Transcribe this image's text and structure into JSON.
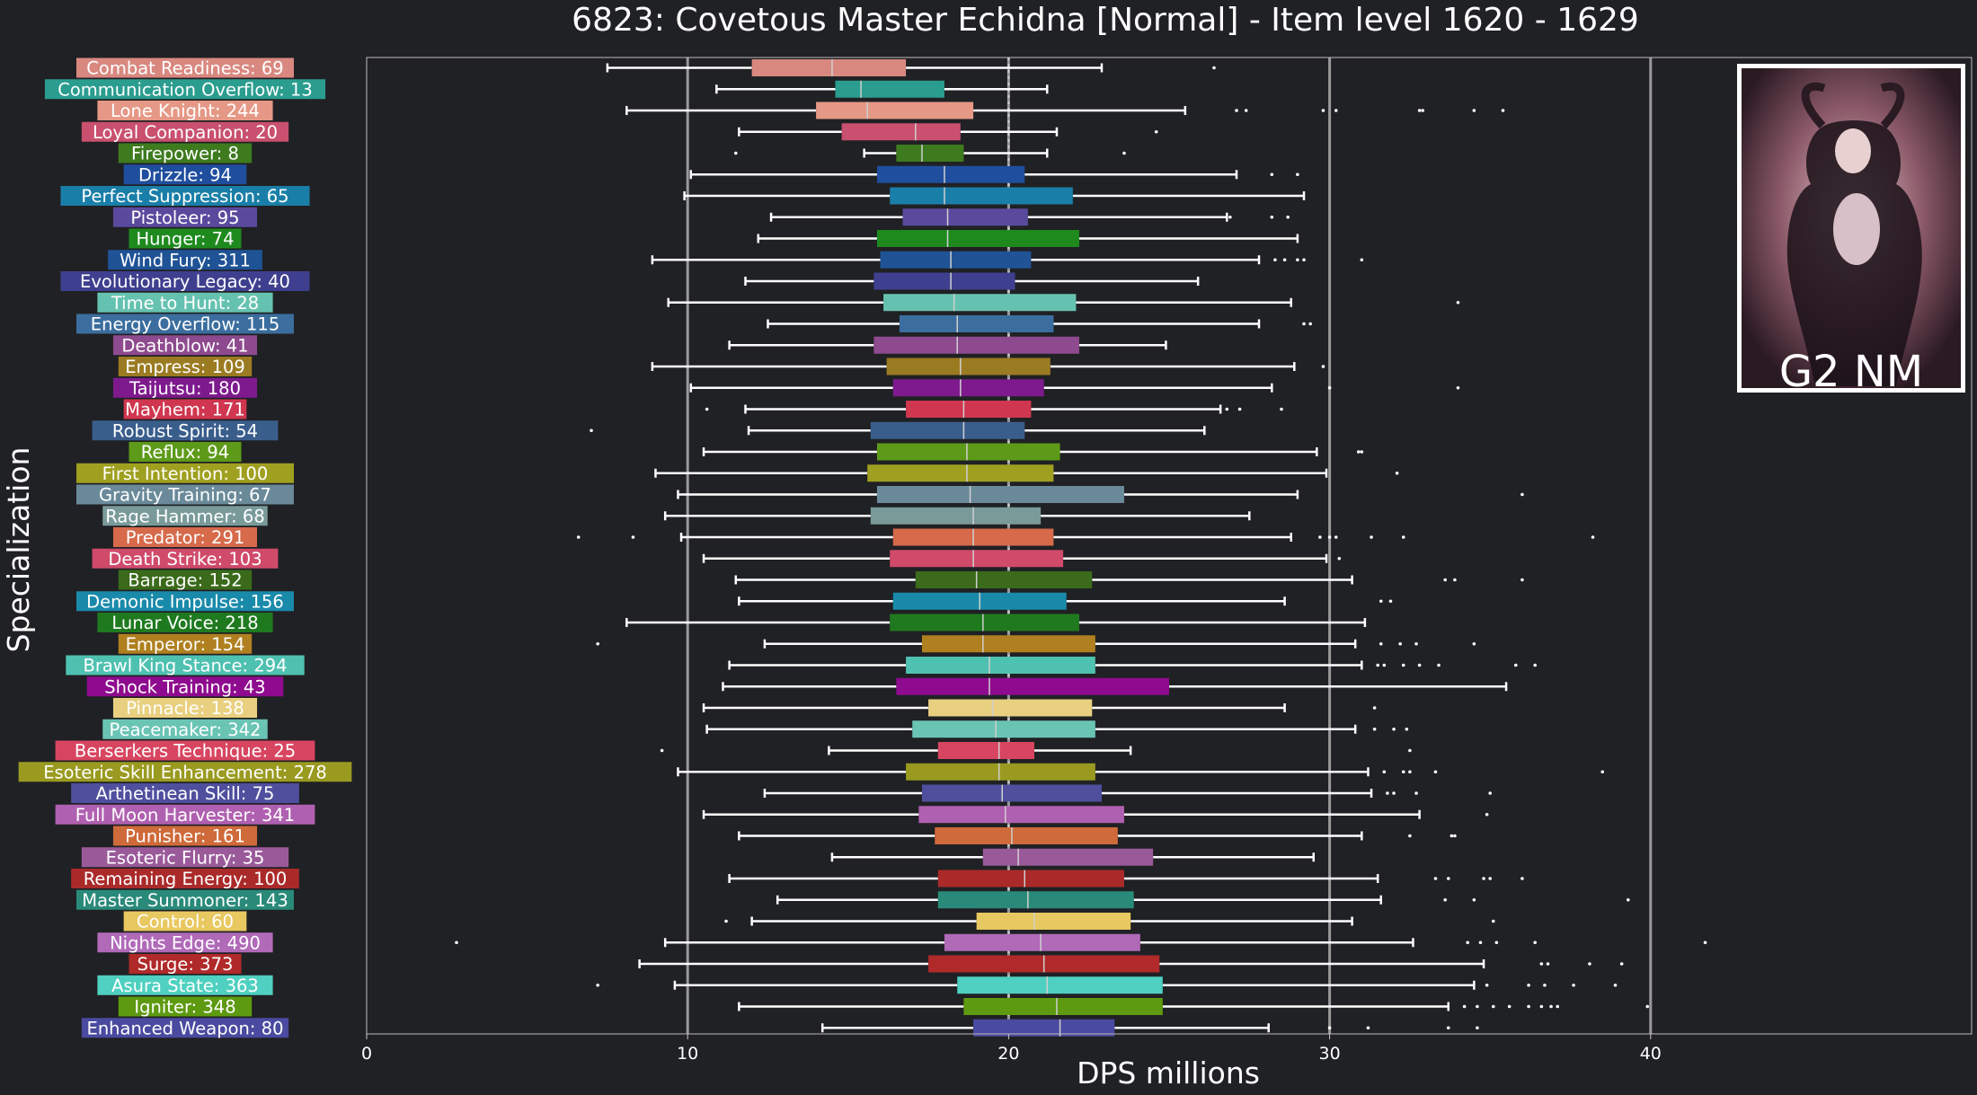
{
  "chart_data": {
    "type": "box",
    "title": "6823: Covetous Master Echidna [Normal] - Item level 1620 - 1629",
    "xlabel": "DPS millions",
    "ylabel": "Specialization",
    "xlim": [
      0,
      50
    ],
    "xticks": [
      0,
      10,
      20,
      30,
      40
    ],
    "grid": "vertical gridlines at major ticks",
    "reference_line": 20,
    "badge": {
      "text": "G2 NM",
      "image": "boss-portrait"
    },
    "series": [
      {
        "label": "Combat Readiness: 69",
        "color": "#d98880",
        "whislo": 7.5,
        "q1": 12.0,
        "med": 14.5,
        "q3": 16.8,
        "whishi": 22.9,
        "fliers": [
          26.4
        ]
      },
      {
        "label": "Communication Overflow: 13",
        "color": "#2a9d8f",
        "whislo": 10.9,
        "q1": 14.6,
        "med": 15.4,
        "q3": 18.0,
        "whishi": 21.2,
        "fliers": []
      },
      {
        "label": "Lone Knight: 244",
        "color": "#e59886",
        "whislo": 8.1,
        "q1": 14.0,
        "med": 15.6,
        "q3": 18.9,
        "whishi": 25.5,
        "fliers": [
          27.1,
          27.4,
          29.8,
          30.2,
          32.8,
          32.9,
          34.5,
          35.4
        ]
      },
      {
        "label": "Loyal Companion: 20",
        "color": "#c9506e",
        "whislo": 11.6,
        "q1": 14.8,
        "med": 17.1,
        "q3": 18.5,
        "whishi": 21.5,
        "fliers": [
          24.6
        ]
      },
      {
        "label": "Firepower: 8",
        "color": "#3e7b1f",
        "whislo": 15.5,
        "q1": 16.5,
        "med": 17.3,
        "q3": 18.6,
        "whishi": 21.2,
        "fliers": [
          11.5,
          23.6
        ]
      },
      {
        "label": "Drizzle: 94",
        "color": "#1f4e9e",
        "whislo": 10.1,
        "q1": 15.9,
        "med": 18.0,
        "q3": 20.5,
        "whishi": 27.1,
        "fliers": [
          28.2,
          29.0
        ]
      },
      {
        "label": "Perfect Suppression: 65",
        "color": "#1a7fa8",
        "whislo": 9.9,
        "q1": 16.3,
        "med": 18.0,
        "q3": 22.0,
        "whishi": 29.2,
        "fliers": []
      },
      {
        "label": "Pistoleer: 95",
        "color": "#5a4a9e",
        "whislo": 12.6,
        "q1": 16.7,
        "med": 18.1,
        "q3": 20.6,
        "whishi": 26.8,
        "fliers": [
          26.9,
          28.2,
          28.7
        ]
      },
      {
        "label": "Hunger: 74",
        "color": "#1e8a1e",
        "whislo": 12.2,
        "q1": 15.9,
        "med": 18.1,
        "q3": 22.2,
        "whishi": 29.0,
        "fliers": []
      },
      {
        "label": "Wind Fury: 311",
        "color": "#1f5396",
        "whislo": 8.9,
        "q1": 16.0,
        "med": 18.2,
        "q3": 20.7,
        "whishi": 27.8,
        "fliers": [
          28.3,
          28.6,
          29.0,
          29.2,
          31.0
        ]
      },
      {
        "label": "Evolutionary Legacy: 40",
        "color": "#3f3f8f",
        "whislo": 11.8,
        "q1": 15.8,
        "med": 18.2,
        "q3": 20.2,
        "whishi": 25.9,
        "fliers": []
      },
      {
        "label": "Time to Hunt: 28",
        "color": "#66c2b0",
        "whislo": 9.4,
        "q1": 16.1,
        "med": 18.3,
        "q3": 22.1,
        "whishi": 28.8,
        "fliers": [
          34.0
        ]
      },
      {
        "label": "Energy Overflow: 115",
        "color": "#3b6e9e",
        "whislo": 12.5,
        "q1": 16.6,
        "med": 18.4,
        "q3": 21.4,
        "whishi": 27.8,
        "fliers": [
          29.2,
          29.4
        ]
      },
      {
        "label": "Deathblow: 41",
        "color": "#8e4a8e",
        "whislo": 11.3,
        "q1": 15.8,
        "med": 18.4,
        "q3": 22.2,
        "whishi": 24.9,
        "fliers": []
      },
      {
        "label": "Empress: 109",
        "color": "#9b7b22",
        "whislo": 8.9,
        "q1": 16.2,
        "med": 18.5,
        "q3": 21.3,
        "whishi": 28.9,
        "fliers": [
          29.8
        ]
      },
      {
        "label": "Taijutsu: 180",
        "color": "#7e1a8e",
        "whislo": 10.1,
        "q1": 16.4,
        "med": 18.5,
        "q3": 21.1,
        "whishi": 28.2,
        "fliers": [
          30.0,
          34.0
        ]
      },
      {
        "label": "Mayhem: 171",
        "color": "#d0364f",
        "whislo": 11.8,
        "q1": 16.8,
        "med": 18.6,
        "q3": 20.7,
        "whishi": 26.6,
        "fliers": [
          26.8,
          27.2,
          28.5,
          10.6
        ]
      },
      {
        "label": "Robust Spirit: 54",
        "color": "#3a5e8c",
        "whislo": 11.9,
        "q1": 15.7,
        "med": 18.6,
        "q3": 20.5,
        "whishi": 26.1,
        "fliers": [
          7.0
        ]
      },
      {
        "label": "Reflux: 94",
        "color": "#5e9a1a",
        "whislo": 10.5,
        "q1": 15.9,
        "med": 18.7,
        "q3": 21.6,
        "whishi": 29.6,
        "fliers": [
          30.9,
          31.0
        ]
      },
      {
        "label": "First Intention: 100",
        "color": "#a0a020",
        "whislo": 9.0,
        "q1": 15.6,
        "med": 18.7,
        "q3": 21.4,
        "whishi": 29.9,
        "fliers": [
          32.1
        ]
      },
      {
        "label": "Gravity Training: 67",
        "color": "#6a8a9a",
        "whislo": 9.7,
        "q1": 15.9,
        "med": 18.8,
        "q3": 23.6,
        "whishi": 29.0,
        "fliers": [
          36.0
        ]
      },
      {
        "label": "Rage Hammer: 68",
        "color": "#7a9a9a",
        "whislo": 9.3,
        "q1": 15.7,
        "med": 18.9,
        "q3": 21.0,
        "whishi": 27.5,
        "fliers": []
      },
      {
        "label": "Predator: 291",
        "color": "#d66a4a",
        "whislo": 9.8,
        "q1": 16.4,
        "med": 18.9,
        "q3": 21.4,
        "whishi": 28.8,
        "fliers": [
          6.6,
          8.3,
          29.7,
          30.0,
          30.2,
          31.3,
          32.3,
          38.2
        ]
      },
      {
        "label": "Death Strike: 103",
        "color": "#d04a6a",
        "whislo": 10.5,
        "q1": 16.3,
        "med": 18.9,
        "q3": 21.7,
        "whishi": 29.9,
        "fliers": [
          30.3
        ]
      },
      {
        "label": "Barrage: 152",
        "color": "#3a6a1a",
        "whislo": 11.5,
        "q1": 17.1,
        "med": 19.0,
        "q3": 22.6,
        "whishi": 30.7,
        "fliers": [
          33.6,
          33.9,
          36.0
        ]
      },
      {
        "label": "Demonic Impulse: 156",
        "color": "#1a8aaa",
        "whislo": 11.6,
        "q1": 16.4,
        "med": 19.1,
        "q3": 21.8,
        "whishi": 28.6,
        "fliers": [
          31.6,
          31.9
        ]
      },
      {
        "label": "Lunar Voice: 218",
        "color": "#1f7a1f",
        "whislo": 8.1,
        "q1": 16.3,
        "med": 19.2,
        "q3": 22.2,
        "whishi": 31.1,
        "fliers": []
      },
      {
        "label": "Emperor: 154",
        "color": "#b08020",
        "whislo": 12.4,
        "q1": 17.3,
        "med": 19.2,
        "q3": 22.7,
        "whishi": 30.8,
        "fliers": [
          7.2,
          31.6,
          32.2,
          32.7,
          34.5
        ]
      },
      {
        "label": "Brawl King Stance: 294",
        "color": "#4fc1b1",
        "whislo": 11.3,
        "q1": 16.8,
        "med": 19.4,
        "q3": 22.7,
        "whishi": 31.0,
        "fliers": [
          31.5,
          31.7,
          32.3,
          32.8,
          33.4,
          35.8,
          36.4
        ]
      },
      {
        "label": "Shock Training: 43",
        "color": "#8e0a8e",
        "whislo": 11.1,
        "q1": 16.5,
        "med": 19.4,
        "q3": 25.0,
        "whishi": 35.5,
        "fliers": []
      },
      {
        "label": "Pinnacle: 138",
        "color": "#e8d080",
        "whislo": 10.5,
        "q1": 17.5,
        "med": 19.5,
        "q3": 22.6,
        "whishi": 28.6,
        "fliers": [
          31.4
        ]
      },
      {
        "label": "Peacemaker: 342",
        "color": "#6ac4b4",
        "whislo": 10.6,
        "q1": 17.0,
        "med": 19.6,
        "q3": 22.7,
        "whishi": 30.8,
        "fliers": [
          31.4,
          32.0,
          32.4
        ]
      },
      {
        "label": "Berserkers Technique: 25",
        "color": "#d84560",
        "whislo": 14.4,
        "q1": 17.8,
        "med": 19.7,
        "q3": 20.8,
        "whishi": 23.8,
        "fliers": [
          9.2,
          32.5
        ]
      },
      {
        "label": "Esoteric Skill Enhancement: 278",
        "color": "#9a9a20",
        "whislo": 9.7,
        "q1": 16.8,
        "med": 19.7,
        "q3": 22.7,
        "whishi": 31.2,
        "fliers": [
          31.7,
          32.3,
          32.5,
          33.3,
          38.5
        ]
      },
      {
        "label": "Arthetinean Skill: 75",
        "color": "#4f4f9e",
        "whislo": 12.4,
        "q1": 17.3,
        "med": 19.8,
        "q3": 22.9,
        "whishi": 31.3,
        "fliers": [
          31.8,
          32.0,
          32.7,
          35.0
        ]
      },
      {
        "label": "Full Moon Harvester: 341",
        "color": "#b060b0",
        "whislo": 10.5,
        "q1": 17.2,
        "med": 19.9,
        "q3": 23.6,
        "whishi": 32.8,
        "fliers": [
          34.9
        ]
      },
      {
        "label": "Punisher: 161",
        "color": "#cf6a3a",
        "whislo": 11.6,
        "q1": 17.7,
        "med": 20.1,
        "q3": 23.4,
        "whishi": 31.0,
        "fliers": [
          32.5,
          33.8,
          33.9
        ]
      },
      {
        "label": "Esoteric Flurry: 35",
        "color": "#9a5a9a",
        "whislo": 14.5,
        "q1": 19.2,
        "med": 20.3,
        "q3": 24.5,
        "whishi": 29.5,
        "fliers": []
      },
      {
        "label": "Remaining Energy: 100",
        "color": "#aa2a2a",
        "whislo": 11.3,
        "q1": 17.8,
        "med": 20.5,
        "q3": 23.6,
        "whishi": 31.5,
        "fliers": [
          33.3,
          33.7,
          34.8,
          35.0,
          36.0
        ]
      },
      {
        "label": "Master Summoner: 143",
        "color": "#2a8a7a",
        "whislo": 12.8,
        "q1": 17.8,
        "med": 20.6,
        "q3": 23.9,
        "whishi": 31.6,
        "fliers": [
          33.6,
          34.5,
          39.3
        ]
      },
      {
        "label": "Control: 60",
        "color": "#e8c860",
        "whislo": 12.0,
        "q1": 19.0,
        "med": 20.8,
        "q3": 23.8,
        "whishi": 30.7,
        "fliers": [
          11.2,
          35.1
        ]
      },
      {
        "label": "Nights Edge: 490",
        "color": "#b06ab8",
        "whislo": 9.3,
        "q1": 18.0,
        "med": 21.0,
        "q3": 24.1,
        "whishi": 32.6,
        "fliers": [
          2.8,
          34.3,
          34.7,
          35.2,
          36.4,
          41.7
        ]
      },
      {
        "label": "Surge: 373",
        "color": "#b02a2a",
        "whislo": 8.5,
        "q1": 17.5,
        "med": 21.1,
        "q3": 24.7,
        "whishi": 34.8,
        "fliers": [
          36.6,
          36.8,
          38.1,
          39.1
        ]
      },
      {
        "label": "Asura State: 363",
        "color": "#4fd0c0",
        "whislo": 9.6,
        "q1": 18.4,
        "med": 21.2,
        "q3": 24.8,
        "whishi": 34.5,
        "fliers": [
          7.2,
          34.9,
          36.2,
          36.7,
          37.6,
          38.9
        ]
      },
      {
        "label": "Igniter: 348",
        "color": "#5e9a10",
        "whislo": 11.6,
        "q1": 18.6,
        "med": 21.5,
        "q3": 24.8,
        "whishi": 33.7,
        "fliers": [
          34.2,
          34.6,
          35.1,
          35.6,
          36.2,
          36.6,
          36.9,
          37.1,
          39.9
        ]
      },
      {
        "label": "Enhanced Weapon: 80",
        "color": "#4a4aa0",
        "whislo": 14.2,
        "q1": 18.9,
        "med": 21.6,
        "q3": 23.3,
        "whishi": 28.1,
        "fliers": [
          30.0,
          31.2,
          33.7,
          34.6
        ]
      }
    ]
  }
}
